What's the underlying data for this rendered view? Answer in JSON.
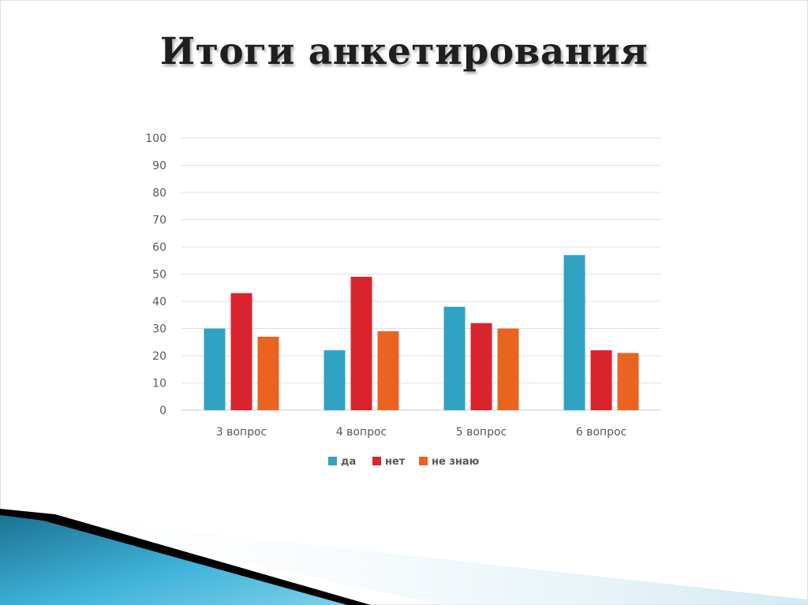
{
  "slide": {
    "title": "Итоги анкетирования"
  },
  "chart_data": {
    "type": "bar",
    "title": "",
    "xlabel": "",
    "ylabel": "",
    "categories": [
      "3 вопрос",
      "4 вопрос",
      "5 вопрос",
      "6 вопрос"
    ],
    "series": [
      {
        "name": "да",
        "color": "#2fa3c1",
        "values": [
          30,
          22,
          38,
          57
        ]
      },
      {
        "name": "нет",
        "color": "#d9232d",
        "values": [
          43,
          49,
          32,
          22
        ]
      },
      {
        "name": "не знаю",
        "color": "#e8641f",
        "values": [
          27,
          29,
          30,
          21
        ]
      }
    ],
    "ylim": [
      0,
      100
    ],
    "yticks": [
      "0",
      "10",
      "20",
      "30",
      "40",
      "50",
      "60",
      "70",
      "80",
      "90",
      "100"
    ],
    "grid": true,
    "legend_position": "bottom"
  },
  "theme": {
    "decoration_colors": [
      "#1b6f8f",
      "#3fb3d9",
      "#000000",
      "#cfe7f1"
    ]
  }
}
